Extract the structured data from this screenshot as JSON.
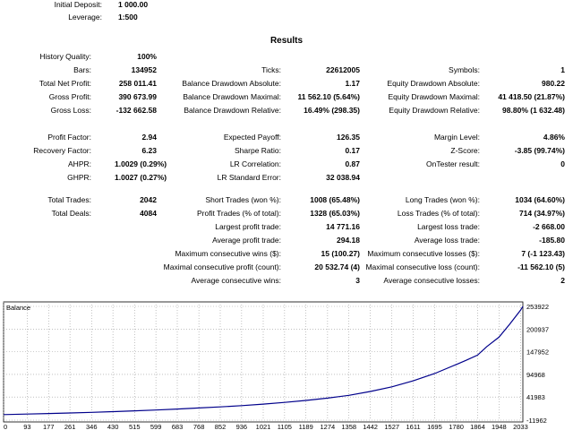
{
  "header": {
    "initial_deposit_label": "Initial Deposit:",
    "initial_deposit_value": "1 000.00",
    "leverage_label": "Leverage:",
    "leverage_value": "1:500"
  },
  "results_title": "Results",
  "col1": [
    {
      "label": "History Quality:",
      "value": "100%"
    },
    {
      "label": "Bars:",
      "value": "134952"
    },
    {
      "label": "Total Net Profit:",
      "value": "258 011.41"
    },
    {
      "label": "Gross Profit:",
      "value": "390 673.99"
    },
    {
      "label": "Gross Loss:",
      "value": "-132 662.58"
    },
    {
      "label": "Profit Factor:",
      "value": "2.94"
    },
    {
      "label": "Recovery Factor:",
      "value": "6.23"
    },
    {
      "label": "AHPR:",
      "value": "1.0029 (0.29%)"
    },
    {
      "label": "GHPR:",
      "value": "1.0027 (0.27%)"
    },
    {
      "label": "Total Trades:",
      "value": "2042"
    },
    {
      "label": "Total Deals:",
      "value": "4084"
    }
  ],
  "col2": [
    {
      "label": "Ticks:",
      "value": "22612005"
    },
    {
      "label": "Balance Drawdown Absolute:",
      "value": "1.17"
    },
    {
      "label": "Balance Drawdown Maximal:",
      "value": "11 562.10 (5.64%)"
    },
    {
      "label": "Balance Drawdown Relative:",
      "value": "16.49% (298.35)"
    },
    {
      "label": "Expected Payoff:",
      "value": "126.35"
    },
    {
      "label": "Sharpe Ratio:",
      "value": "0.17"
    },
    {
      "label": "LR Correlation:",
      "value": "0.87"
    },
    {
      "label": "LR Standard Error:",
      "value": "32 038.94"
    },
    {
      "label": "Short Trades (won %):",
      "value": "1008 (65.48%)"
    },
    {
      "label": "Profit Trades (% of total):",
      "value": "1328 (65.03%)"
    },
    {
      "label": "Largest profit trade:",
      "value": "14 771.16"
    },
    {
      "label": "Average profit trade:",
      "value": "294.18"
    },
    {
      "label": "Maximum consecutive wins ($):",
      "value": "15 (100.27)"
    },
    {
      "label": "Maximal consecutive profit (count):",
      "value": "20 532.74 (4)"
    },
    {
      "label": "Average consecutive wins:",
      "value": "3"
    }
  ],
  "col3": [
    {
      "label": "Symbols:",
      "value": "1"
    },
    {
      "label": "Equity Drawdown Absolute:",
      "value": "980.22"
    },
    {
      "label": "Equity Drawdown Maximal:",
      "value": "41 418.50 (21.87%)"
    },
    {
      "label": "Equity Drawdown Relative:",
      "value": "98.80% (1 632.48)"
    },
    {
      "label": "Margin Level:",
      "value": "4.86%"
    },
    {
      "label": "Z-Score:",
      "value": "-3.85 (99.74%)"
    },
    {
      "label": "OnTester result:",
      "value": "0"
    },
    {
      "label": "Long Trades (won %):",
      "value": "1034 (64.60%)"
    },
    {
      "label": "Loss Trades (% of total):",
      "value": "714 (34.97%)"
    },
    {
      "label": "Largest loss trade:",
      "value": "-2 668.00"
    },
    {
      "label": "Average loss trade:",
      "value": "-185.80"
    },
    {
      "label": "Maximum consecutive losses ($):",
      "value": "7 (-1 123.43)"
    },
    {
      "label": "Maximal consecutive loss (count):",
      "value": "-11 562.10 (5)"
    },
    {
      "label": "Average consecutive losses:",
      "value": "2"
    }
  ],
  "chart_data": {
    "type": "line",
    "title": "Balance",
    "line_color": "#00008b",
    "y_ticks": [
      "253922",
      "200937",
      "147952",
      "94968",
      "41983",
      "-11962"
    ],
    "y_tick_values": [
      253922,
      200937,
      147952,
      94968,
      41983,
      -11962
    ],
    "ylim": [
      -11962,
      253922
    ],
    "x_ticks": [
      "0",
      "93",
      "177",
      "261",
      "346",
      "430",
      "515",
      "599",
      "683",
      "768",
      "852",
      "936",
      "1021",
      "1105",
      "1189",
      "1274",
      "1358",
      "1442",
      "1527",
      "1611",
      "1695",
      "1780",
      "1864",
      "1948",
      "2033"
    ],
    "xlim": [
      0,
      2042
    ],
    "series": [
      {
        "x": [
          0,
          93,
          177,
          261,
          346,
          430,
          515,
          599,
          683,
          768,
          852,
          936,
          1021,
          1105,
          1189,
          1274,
          1358,
          1442,
          1527,
          1611,
          1695,
          1780,
          1820,
          1864,
          1900,
          1948,
          1990,
          2033,
          2042
        ],
        "y": [
          1000,
          2200,
          3500,
          4800,
          6300,
          8000,
          9800,
          11800,
          14000,
          16500,
          19000,
          22000,
          25500,
          29500,
          34000,
          39500,
          46000,
          55000,
          66000,
          80000,
          97000,
          118000,
          128000,
          140000,
          160000,
          182000,
          212000,
          245000,
          253922
        ]
      }
    ]
  }
}
